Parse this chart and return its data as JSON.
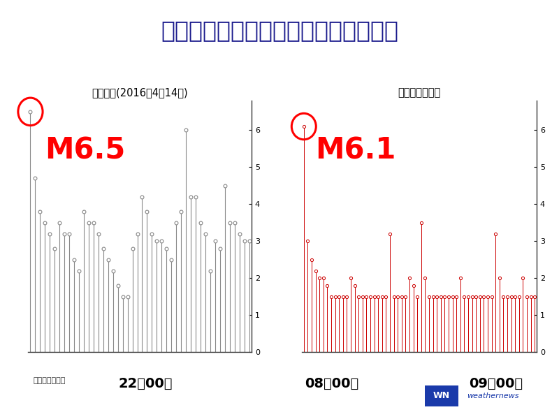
{
  "title": "大阪北部の地震と熊本地震の余震傾向",
  "title_color": "#1a1a8c",
  "title_fontsize": 24,
  "background_color": "#ffffff",
  "left_subtitle": "熊本地震(2016年4月14日)",
  "left_magnitude_label": "M6.5",
  "left_magnitude_color": "#ff0000",
  "left_circle_color": "#ff0000",
  "left_stem_color": "#888888",
  "left_marker_color": "#888888",
  "left_time_label": "22時00分",
  "left_source_label": "気象庁資料より",
  "right_subtitle": "大阪北部の地震",
  "right_magnitude_label": "M6.1",
  "right_magnitude_color": "#ff0000",
  "right_circle_color": "#ff0000",
  "right_stem_color": "#cc0000",
  "right_marker_color": "#cc0000",
  "right_time_label_start": "08時00分",
  "right_time_label_end": "09時00分",
  "ylim": [
    0,
    6.8
  ],
  "yticks": [
    0,
    1,
    2,
    3,
    4,
    5,
    6
  ],
  "left_data": [
    6.5,
    4.7,
    3.8,
    3.5,
    3.2,
    2.8,
    3.5,
    3.2,
    3.2,
    2.5,
    2.2,
    3.8,
    3.5,
    3.5,
    3.2,
    2.8,
    2.5,
    2.2,
    1.8,
    1.5,
    1.5,
    2.8,
    3.2,
    4.2,
    3.8,
    3.2,
    3.0,
    3.0,
    2.8,
    2.5,
    3.5,
    3.8,
    6.0,
    4.2,
    4.2,
    3.5,
    3.2,
    2.2,
    3.0,
    2.8,
    4.5,
    3.5,
    3.5,
    3.2,
    3.0,
    3.0
  ],
  "right_data": [
    6.1,
    3.0,
    2.5,
    2.2,
    2.0,
    2.0,
    1.8,
    1.5,
    1.5,
    1.5,
    1.5,
    1.5,
    2.0,
    1.8,
    1.5,
    1.5,
    1.5,
    1.5,
    1.5,
    1.5,
    1.5,
    1.5,
    3.2,
    1.5,
    1.5,
    1.5,
    1.5,
    2.0,
    1.8,
    1.5,
    3.5,
    2.0,
    1.5,
    1.5,
    1.5,
    1.5,
    1.5,
    1.5,
    1.5,
    1.5,
    2.0,
    1.5,
    1.5,
    1.5,
    1.5,
    1.5,
    1.5,
    1.5,
    1.5,
    3.2,
    2.0,
    1.5,
    1.5,
    1.5,
    1.5,
    1.5,
    2.0,
    1.5,
    1.5,
    1.5
  ]
}
